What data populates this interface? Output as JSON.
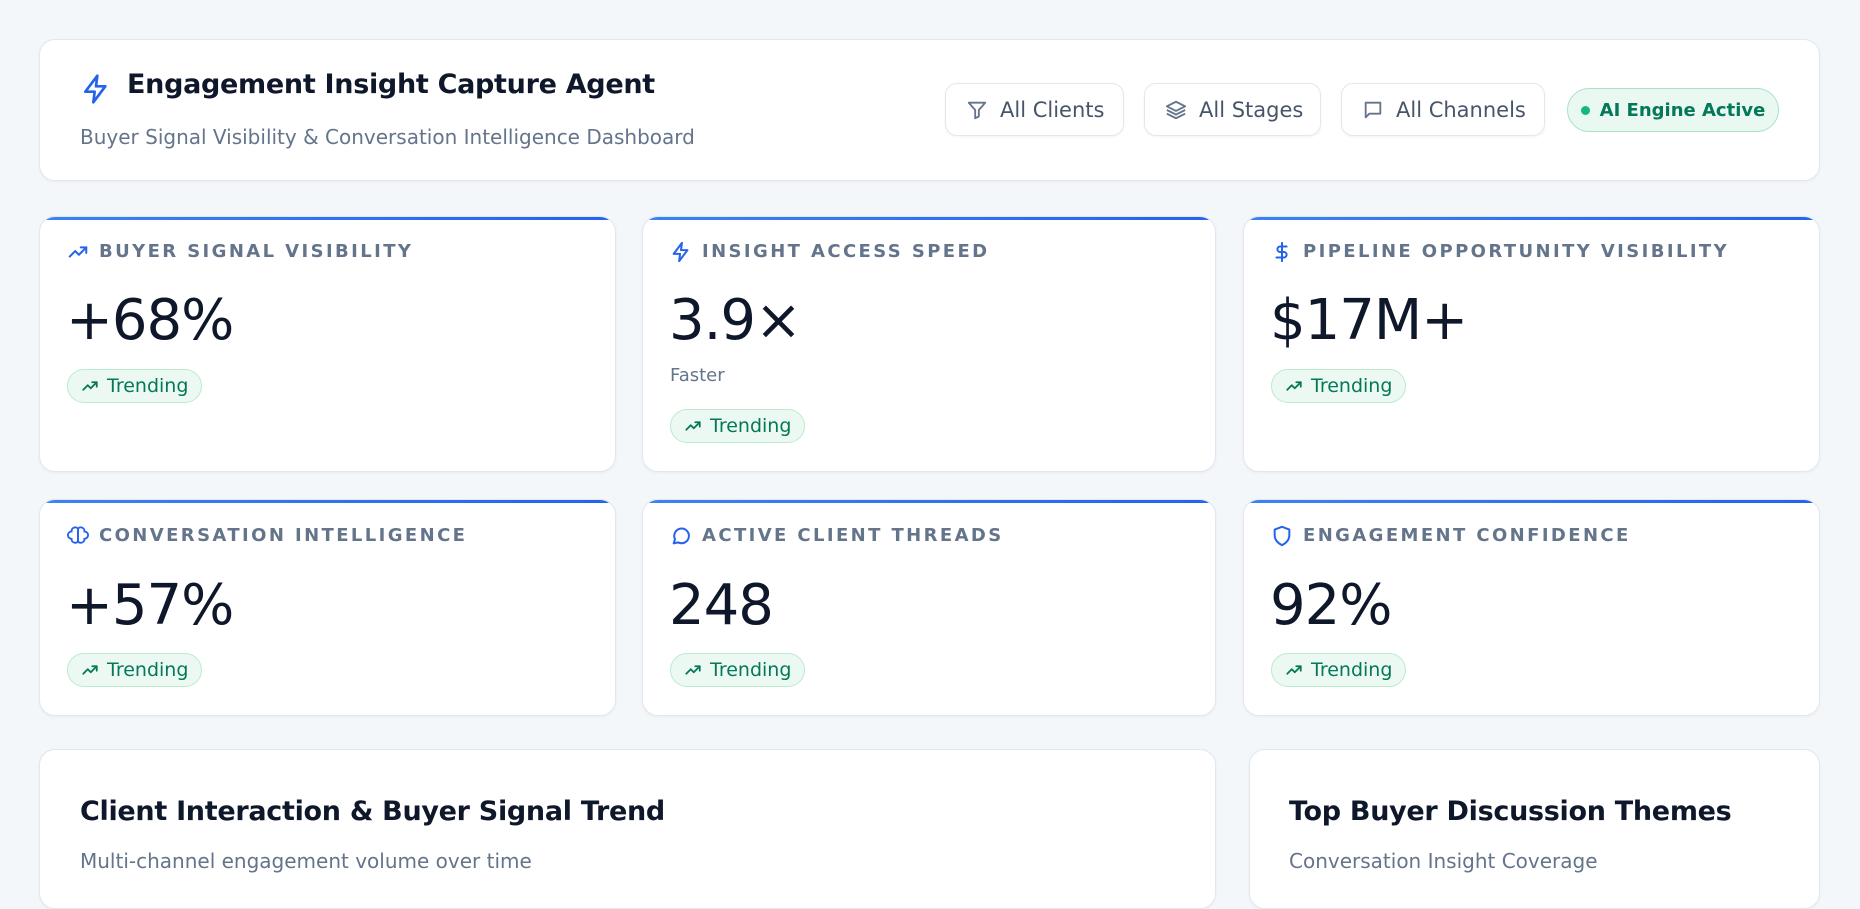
{
  "header": {
    "title": "Engagement Insight Capture Agent",
    "subtitle": "Buyer Signal Visibility & Conversation Intelligence Dashboard"
  },
  "filters": [
    "All Clients",
    "All Stages",
    "All Channels"
  ],
  "status": "AI Engine Active",
  "kpis": [
    {
      "label": "BUYER SIGNAL VISIBILITY",
      "value": "+68%",
      "badge": "Trending"
    },
    {
      "label": "INSIGHT ACCESS SPEED",
      "value": "3.9×",
      "note": "Faster",
      "badge": "Trending"
    },
    {
      "label": "PIPELINE OPPORTUNITY VISIBILITY",
      "value": "$17M+",
      "badge": "Trending"
    },
    {
      "label": "CONVERSATION INTELLIGENCE",
      "value": "+57%",
      "badge": "Trending"
    },
    {
      "label": "ACTIVE CLIENT THREADS",
      "value": "248",
      "badge": "Trending"
    },
    {
      "label": "ENGAGEMENT CONFIDENCE",
      "value": "92%",
      "badge": "Trending"
    }
  ],
  "panels": [
    {
      "title": "Client Interaction & Buyer Signal Trend",
      "subtitle": "Multi-channel engagement volume over time"
    },
    {
      "title": "Top Buyer Discussion Themes",
      "subtitle": "Conversation Insight Coverage"
    }
  ]
}
